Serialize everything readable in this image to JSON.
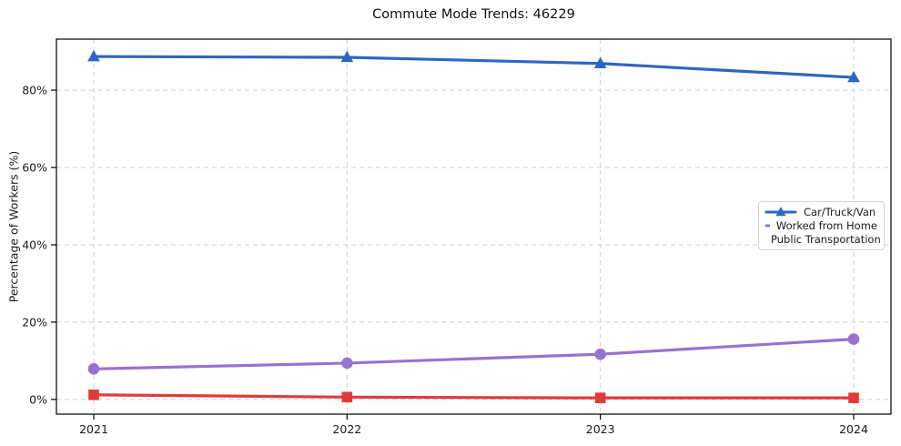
{
  "chart_data": {
    "type": "line",
    "title": "Commute Mode Trends: 46229",
    "ylabel": "Percentage of Workers (%)",
    "categories": [
      "2021",
      "2022",
      "2023",
      "2024"
    ],
    "series": [
      {
        "name": "Car/Truck/Van",
        "color": "#2e66c3",
        "marker": "triangle-up",
        "values": [
          88.7,
          88.5,
          86.9,
          83.3
        ]
      },
      {
        "name": "Worked from Home",
        "color": "#9673d2",
        "marker": "circle",
        "values": [
          7.9,
          9.4,
          11.7,
          15.6
        ]
      },
      {
        "name": "Public Transportation",
        "color": "#e03b3b",
        "marker": "square",
        "values": [
          1.2,
          0.6,
          0.4,
          0.4
        ]
      }
    ],
    "yticks": {
      "values": [
        0,
        20,
        40,
        60,
        80
      ],
      "labels": [
        "0%",
        "20%",
        "40%",
        "60%",
        "80%"
      ]
    },
    "ylim": [
      -3.8,
      93.2
    ],
    "grid": {
      "show": true,
      "style": "dashed",
      "color": "#cfcfcf",
      "axes": "both"
    },
    "legend": {
      "position": "center-right",
      "border_color": "#d4d4d4"
    },
    "axis_color": "#000000",
    "tick_label_color": "#1a1a1a"
  }
}
